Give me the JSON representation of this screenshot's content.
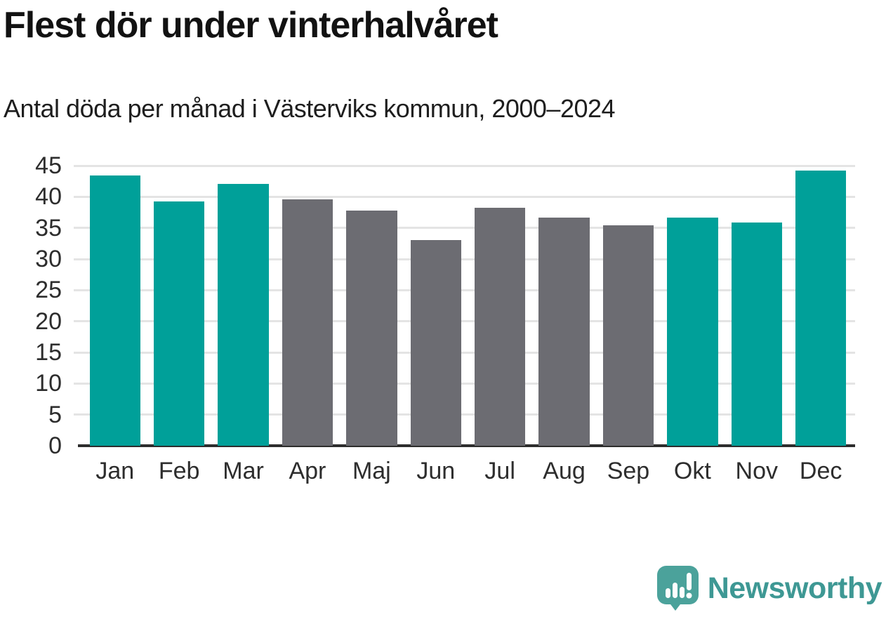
{
  "title": "Flest dör under vinterhalvåret",
  "subtitle": "Antal döda per månad i Västerviks kommun, 2000–2024",
  "chart_data": {
    "type": "bar",
    "title": "Flest dör under vinterhalvåret",
    "subtitle": "Antal döda per månad i Västerviks kommun, 2000–2024",
    "categories": [
      "Jan",
      "Feb",
      "Mar",
      "Apr",
      "Maj",
      "Jun",
      "Jul",
      "Aug",
      "Sep",
      "Okt",
      "Nov",
      "Dec"
    ],
    "values": [
      43.4,
      39.3,
      42.1,
      39.6,
      37.8,
      33.1,
      38.2,
      36.6,
      35.4,
      36.7,
      35.9,
      44.2
    ],
    "bar_groups": [
      "winter",
      "winter",
      "winter",
      "summer",
      "summer",
      "summer",
      "summer",
      "summer",
      "summer",
      "winter",
      "winter",
      "winter"
    ],
    "colors": {
      "winter": "#00a099",
      "summer": "#6c6c72"
    },
    "gridline_color": "#e4e4e4",
    "axis_color": "#2d2d2d",
    "xlabel": "",
    "ylabel": "",
    "ylim": [
      0,
      45
    ],
    "yticks": [
      0,
      5,
      10,
      15,
      20,
      25,
      30,
      35,
      40,
      45
    ],
    "grid": "horizontal",
    "legend": "none"
  },
  "branding": {
    "logo_text": "Newsworthy",
    "logo_text_color": "#3e9894",
    "icon_color": "#4ba29b",
    "icon_name": "newsworthy-chart-bubble-icon"
  }
}
